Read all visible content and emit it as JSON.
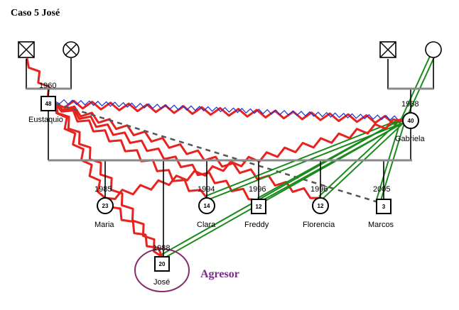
{
  "title": "Caso 5 José",
  "annotation": "Agresor",
  "colors": {
    "conflict": "#e8231f",
    "close": "#1a8a1a",
    "fused": "#1f2fd6",
    "distant": "#555555",
    "structure": "#000000",
    "sibline": "#808080",
    "highlight": "#8a2a6a",
    "agresor": "#7a2a86"
  },
  "people": {
    "gf_paternal": {
      "sex": "male",
      "deceased": true
    },
    "gm_paternal": {
      "sex": "female",
      "deceased": true
    },
    "gf_maternal": {
      "sex": "male",
      "deceased": true
    },
    "gm_maternal": {
      "sex": "female",
      "deceased": false
    },
    "eustaquio": {
      "name": "Eustaquio",
      "year": "1960",
      "age": "48",
      "sex": "male"
    },
    "gabriela": {
      "name": "Gabriela",
      "year": "1968",
      "age": "40",
      "sex": "female"
    },
    "maria": {
      "name": "Maria",
      "year": "1985",
      "age": "23",
      "sex": "female"
    },
    "clara": {
      "name": "Clara",
      "year": "1994",
      "age": "14",
      "sex": "female"
    },
    "freddy": {
      "name": "Freddy",
      "year": "1996",
      "age": "12",
      "sex": "male"
    },
    "florencia": {
      "name": "Florencia",
      "year": "1996",
      "age": "12",
      "sex": "female"
    },
    "marcos": {
      "name": "Marcos",
      "year": "2005",
      "age": "3",
      "sex": "male"
    },
    "jose": {
      "name": "José",
      "year": "1988",
      "age": "20",
      "sex": "male"
    }
  },
  "relationships": [
    {
      "from": "gf_paternal",
      "to": "eustaquio",
      "type": "conflict"
    },
    {
      "from": "eustaquio",
      "to": "gabriela",
      "type": "conflict"
    },
    {
      "from": "eustaquio",
      "to": "gabriela",
      "type": "fused"
    },
    {
      "from": "eustaquio",
      "to": "maria",
      "type": "conflict"
    },
    {
      "from": "eustaquio",
      "to": "jose",
      "type": "conflict"
    },
    {
      "from": "eustaquio",
      "to": "clara",
      "type": "conflict"
    },
    {
      "from": "eustaquio",
      "to": "freddy",
      "type": "conflict"
    },
    {
      "from": "eustaquio",
      "to": "florencia",
      "type": "conflict"
    },
    {
      "from": "eustaquio",
      "to": "marcos",
      "type": "distant"
    },
    {
      "from": "gabriela",
      "to": "jose",
      "type": "close"
    },
    {
      "from": "gabriela",
      "to": "freddy",
      "type": "close"
    },
    {
      "from": "gabriela",
      "to": "clara",
      "type": "close"
    },
    {
      "from": "gabriela",
      "to": "florencia",
      "type": "close"
    },
    {
      "from": "gabriela",
      "to": "marcos",
      "type": "close"
    },
    {
      "from": "gm_maternal",
      "to": "gabriela",
      "type": "close"
    },
    {
      "from": "gabriela",
      "to": "maria",
      "type": "conflict"
    },
    {
      "from": "maria",
      "to": "jose",
      "type": "conflict"
    }
  ]
}
